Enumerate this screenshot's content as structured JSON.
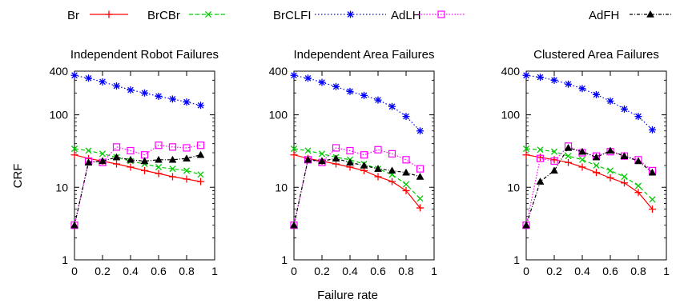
{
  "chart_data": [
    {
      "type": "line",
      "title": "Independent Robot Failures",
      "xlabel": "",
      "ylabel": "CRF",
      "xlim": [
        0,
        1
      ],
      "ylim": [
        1,
        400
      ],
      "yscale": "log",
      "xticks": [
        "0",
        "0.2",
        "0.4",
        "0.6",
        "0.8",
        "1"
      ],
      "yticks": [
        "1",
        "10",
        "100",
        "400"
      ],
      "series": [
        {
          "name": "Br",
          "x": [
            0,
            0.1,
            0.2,
            0.3,
            0.4,
            0.5,
            0.6,
            0.7,
            0.8,
            0.9
          ],
          "y": [
            28,
            25,
            23,
            21,
            19,
            17,
            15.5,
            14,
            13,
            12
          ]
        },
        {
          "name": "BrCBr",
          "x": [
            0,
            0.1,
            0.2,
            0.3,
            0.4,
            0.5,
            0.6,
            0.7,
            0.8,
            0.9
          ],
          "y": [
            34,
            32,
            29,
            26,
            23,
            21,
            19,
            18,
            17,
            15
          ]
        },
        {
          "name": "BrCLFI",
          "x": [
            0,
            0.1,
            0.2,
            0.3,
            0.4,
            0.5,
            0.6,
            0.7,
            0.8,
            0.9
          ],
          "y": [
            350,
            320,
            285,
            250,
            220,
            200,
            180,
            165,
            150,
            135
          ]
        },
        {
          "name": "AdLH",
          "x": [
            0,
            0.1,
            0.2,
            0.3,
            0.4,
            0.5,
            0.6,
            0.7,
            0.8,
            0.9
          ],
          "y": [
            3,
            23,
            22,
            36,
            32,
            28,
            38,
            36,
            35,
            38
          ]
        },
        {
          "name": "AdFH",
          "x": [
            0,
            0.1,
            0.2,
            0.3,
            0.4,
            0.5,
            0.6,
            0.7,
            0.8,
            0.9
          ],
          "y": [
            3,
            22,
            23,
            26,
            24,
            23,
            24,
            24,
            25,
            28
          ]
        }
      ]
    },
    {
      "type": "line",
      "title": "Independent Area Failures",
      "xlabel": "Failure rate",
      "ylabel": "",
      "xlim": [
        0,
        1
      ],
      "ylim": [
        1,
        400
      ],
      "yscale": "log",
      "xticks": [
        "0",
        "0.2",
        "0.4",
        "0.6",
        "0.8",
        "1"
      ],
      "yticks": [
        "1",
        "10",
        "100",
        "400"
      ],
      "series": [
        {
          "name": "Br",
          "x": [
            0,
            0.1,
            0.2,
            0.3,
            0.4,
            0.5,
            0.6,
            0.7,
            0.8,
            0.9
          ],
          "y": [
            28,
            25,
            23,
            21,
            19,
            17,
            14,
            12,
            9,
            5.2
          ]
        },
        {
          "name": "BrCBr",
          "x": [
            0,
            0.1,
            0.2,
            0.3,
            0.4,
            0.5,
            0.6,
            0.7,
            0.8,
            0.9
          ],
          "y": [
            34,
            32,
            29,
            26,
            24,
            21,
            18,
            15,
            11,
            7
          ]
        },
        {
          "name": "BrCLFI",
          "x": [
            0,
            0.1,
            0.2,
            0.3,
            0.4,
            0.5,
            0.6,
            0.7,
            0.8,
            0.9
          ],
          "y": [
            350,
            320,
            280,
            245,
            210,
            185,
            160,
            130,
            95,
            60
          ]
        },
        {
          "name": "AdLH",
          "x": [
            0,
            0.1,
            0.2,
            0.3,
            0.4,
            0.5,
            0.6,
            0.7,
            0.8,
            0.9
          ],
          "y": [
            3,
            24,
            22,
            35,
            32,
            28,
            33,
            29,
            24,
            18
          ]
        },
        {
          "name": "AdFH",
          "x": [
            0,
            0.1,
            0.2,
            0.3,
            0.4,
            0.5,
            0.6,
            0.7,
            0.8,
            0.9
          ],
          "y": [
            3,
            24,
            23,
            25,
            22,
            20,
            18,
            17,
            16,
            14
          ]
        }
      ]
    },
    {
      "type": "line",
      "title": "Clustered Area Failures",
      "xlabel": "",
      "ylabel": "",
      "xlim": [
        0,
        1
      ],
      "ylim": [
        1,
        400
      ],
      "yscale": "log",
      "xticks": [
        "0",
        "0.2",
        "0.4",
        "0.6",
        "0.8",
        "1"
      ],
      "yticks": [
        "1",
        "10",
        "100",
        "400"
      ],
      "series": [
        {
          "name": "Br",
          "x": [
            0,
            0.1,
            0.2,
            0.3,
            0.4,
            0.5,
            0.6,
            0.7,
            0.8,
            0.9
          ],
          "y": [
            28,
            26,
            24,
            22,
            19,
            16,
            13.5,
            11.5,
            8.5,
            5
          ]
        },
        {
          "name": "BrCBr",
          "x": [
            0,
            0.1,
            0.2,
            0.3,
            0.4,
            0.5,
            0.6,
            0.7,
            0.8,
            0.9
          ],
          "y": [
            34,
            33,
            31,
            27,
            24,
            20,
            17,
            14,
            10.5,
            6.8
          ]
        },
        {
          "name": "BrCLFI",
          "x": [
            0,
            0.1,
            0.2,
            0.3,
            0.4,
            0.5,
            0.6,
            0.7,
            0.8,
            0.9
          ],
          "y": [
            350,
            330,
            300,
            265,
            230,
            190,
            155,
            120,
            95,
            62
          ]
        },
        {
          "name": "AdLH",
          "x": [
            0,
            0.1,
            0.2,
            0.3,
            0.4,
            0.5,
            0.6,
            0.7,
            0.8,
            0.9
          ],
          "y": [
            3,
            25,
            23,
            37,
            30,
            27,
            31,
            27,
            24,
            17
          ]
        },
        {
          "name": "AdFH",
          "x": [
            0,
            0.1,
            0.2,
            0.3,
            0.4,
            0.5,
            0.6,
            0.7,
            0.8,
            0.9
          ],
          "y": [
            3,
            12,
            17,
            35,
            31,
            26,
            32,
            27,
            23,
            16
          ]
        }
      ]
    }
  ],
  "legend": [
    {
      "name": "Br",
      "color": "#ff0000",
      "marker": "plus",
      "dash": ""
    },
    {
      "name": "BrCBr",
      "color": "#00cc00",
      "marker": "cross",
      "dash": "5,3"
    },
    {
      "name": "BrCLFI",
      "color": "#0000ff",
      "marker": "star",
      "dash": "1.5,2.5"
    },
    {
      "name": "AdLH",
      "color": "#ff00ff",
      "marker": "open-square",
      "dash": "1.5,2"
    },
    {
      "name": "AdFH",
      "color": "#000000",
      "marker": "filled-triangle",
      "dash": "4,2,1,2"
    }
  ]
}
